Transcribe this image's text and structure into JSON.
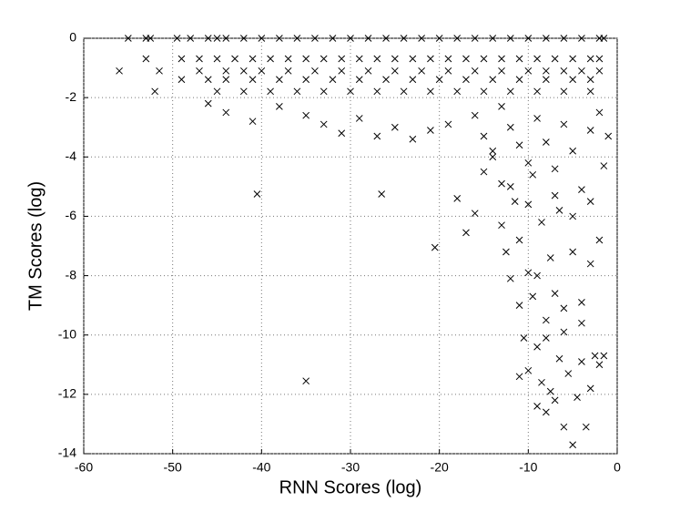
{
  "chart_data": {
    "type": "scatter",
    "x_label": "RNN Scores (log)",
    "y_label": "TM Scores (log)",
    "color": "#000000",
    "grid": true,
    "xlim": [
      -60,
      0
    ],
    "ylim": [
      -14,
      0
    ],
    "xticks": [
      -60,
      -50,
      -40,
      -30,
      -20,
      -10,
      0
    ],
    "yticks": [
      -14,
      -12,
      -10,
      -8,
      -6,
      -4,
      -2,
      0
    ],
    "x": [
      -55,
      -53,
      -52.5,
      -49.5,
      -48,
      -46,
      -45,
      -44,
      -42,
      -40,
      -38,
      -36,
      -34,
      -32,
      -30,
      -28,
      -26,
      -24,
      -22,
      -20,
      -18,
      -16,
      -14,
      -12,
      -10,
      -8,
      -6,
      -4,
      -2,
      -1.5,
      -53,
      -49,
      -47,
      -45,
      -43,
      -41,
      -39,
      -37,
      -35,
      -33,
      -31,
      -29,
      -27,
      -25,
      -23,
      -21,
      -19,
      -17,
      -15,
      -13,
      -11,
      -9,
      -7,
      -5,
      -3,
      -2,
      -56,
      -51.5,
      -47,
      -44,
      -42,
      -40,
      -37,
      -34,
      -31,
      -28,
      -25,
      -22,
      -19,
      -16,
      -13,
      -10,
      -8,
      -6,
      -4,
      -2,
      -49,
      -46,
      -44,
      -41,
      -38,
      -35,
      -32,
      -29,
      -26,
      -23,
      -20,
      -17,
      -14,
      -11,
      -8,
      -5,
      -3,
      -52,
      -45,
      -42,
      -39,
      -36,
      -33,
      -30,
      -27,
      -24,
      -21,
      -18,
      -15,
      -12,
      -9,
      -6,
      -3,
      -46,
      -44,
      -41,
      -38,
      -35,
      -33,
      -31,
      -29,
      -27,
      -25,
      -23,
      -21,
      -19,
      -40.5,
      -26.5,
      -35,
      -20.5,
      -18,
      -17,
      -16,
      -15,
      -14,
      -13,
      -13,
      -12.5,
      -12,
      -11.5,
      -11,
      -11,
      -10.5,
      -10,
      -10,
      -9.5,
      -9.5,
      -9,
      -9,
      -8.5,
      -8.5,
      -8,
      -8,
      -7.5,
      -7.5,
      -7,
      -7,
      -6.5,
      -6.5,
      -6,
      -6,
      -5.5,
      -5,
      -5,
      -4.5,
      -4,
      -4,
      -3.5,
      -3,
      -3,
      -2.5,
      -2,
      -2,
      -1.5,
      -1.5,
      -1,
      -13,
      -12,
      -11,
      -10,
      -9,
      -8,
      -7,
      -6,
      -5,
      -4,
      -3,
      -2,
      -16,
      -15,
      -14,
      -12,
      -10,
      -7,
      -5,
      -3,
      -11,
      -9,
      -6,
      -8,
      -4
    ],
    "y": [
      0,
      0,
      0,
      0,
      0,
      0,
      0,
      0,
      0,
      0,
      0,
      0,
      0,
      0,
      0,
      0,
      0,
      0,
      0,
      0,
      0,
      0,
      0,
      0,
      0,
      0,
      0,
      0,
      0,
      0,
      -0.69,
      -0.69,
      -0.69,
      -0.69,
      -0.69,
      -0.69,
      -0.69,
      -0.69,
      -0.69,
      -0.69,
      -0.69,
      -0.69,
      -0.69,
      -0.69,
      -0.69,
      -0.69,
      -0.69,
      -0.69,
      -0.69,
      -0.69,
      -0.69,
      -0.69,
      -0.69,
      -0.69,
      -0.69,
      -0.69,
      -1.1,
      -1.1,
      -1.1,
      -1.1,
      -1.1,
      -1.1,
      -1.1,
      -1.1,
      -1.1,
      -1.1,
      -1.1,
      -1.1,
      -1.1,
      -1.1,
      -1.1,
      -1.1,
      -1.1,
      -1.1,
      -1.1,
      -1.1,
      -1.39,
      -1.39,
      -1.39,
      -1.39,
      -1.39,
      -1.39,
      -1.39,
      -1.39,
      -1.39,
      -1.39,
      -1.39,
      -1.39,
      -1.39,
      -1.39,
      -1.39,
      -1.39,
      -1.39,
      -1.79,
      -1.79,
      -1.79,
      -1.79,
      -1.79,
      -1.79,
      -1.79,
      -1.79,
      -1.79,
      -1.79,
      -1.79,
      -1.79,
      -1.79,
      -1.79,
      -1.79,
      -1.79,
      -2.2,
      -2.5,
      -2.8,
      -2.3,
      -2.6,
      -2.9,
      -3.2,
      -2.7,
      -3.3,
      -3.0,
      -3.4,
      -3.1,
      -2.9,
      -5.25,
      -5.25,
      -11.55,
      -7.05,
      -5.4,
      -6.55,
      -5.9,
      -4.5,
      -3.8,
      -4.9,
      -6.3,
      -7.2,
      -8.1,
      -5.5,
      -9.0,
      -6.8,
      -10.1,
      -7.9,
      -11.2,
      -4.6,
      -8.7,
      -12.4,
      -10.4,
      -6.2,
      -11.6,
      -9.5,
      -12.6,
      -7.4,
      -11.9,
      -8.6,
      -12.2,
      -5.8,
      -10.8,
      -9.9,
      -13.1,
      -11.3,
      -13.7,
      -7.2,
      -12.1,
      -8.9,
      -10.9,
      -13.1,
      -11.8,
      -7.6,
      -10.7,
      -6.8,
      -11.0,
      -10.7,
      -4.3,
      -3.3,
      -2.3,
      -3.0,
      -3.6,
      -4.2,
      -2.7,
      -3.5,
      -4.4,
      -2.9,
      -3.8,
      -5.1,
      -3.1,
      -2.5,
      -2.6,
      -3.3,
      -4.0,
      -5.0,
      -5.6,
      -5.3,
      -6.0,
      -5.5,
      -11.4,
      -8.0,
      -9.1,
      -10.1,
      -9.6
    ]
  }
}
